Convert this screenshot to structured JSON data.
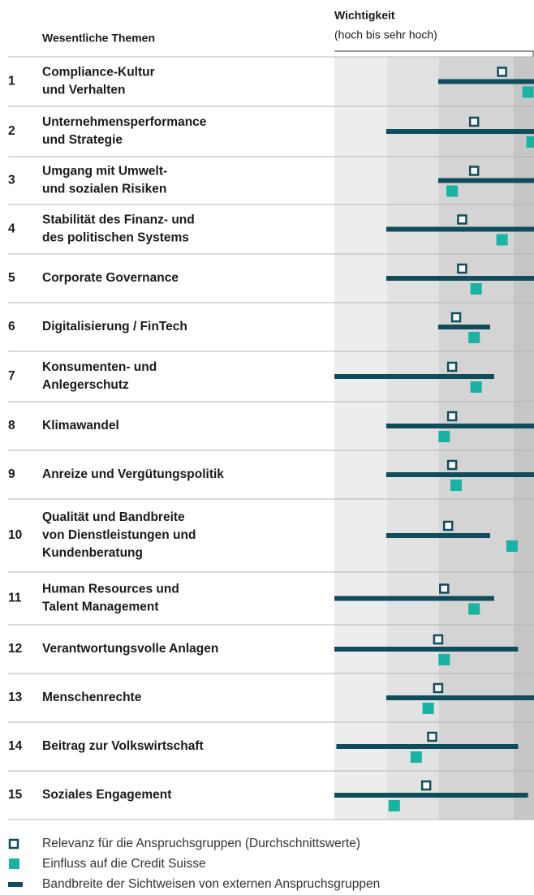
{
  "chart_data": {
    "type": "range",
    "row_header": "Wesentliche Themen",
    "axis_title": "Wichtigkeit",
    "axis_subtitle": "(hoch bis sehr hoch)",
    "numbers": [
      "1",
      "2",
      "3",
      "4",
      "5",
      "6",
      "7",
      "8",
      "9",
      "10",
      "11",
      "12",
      "13",
      "14",
      "15"
    ],
    "categories": [
      [
        "Compliance-Kultur",
        "und Verhalten"
      ],
      [
        "Unternehmensperformance",
        "und Strategie"
      ],
      [
        "Umgang mit Umwelt-",
        "und sozialen Risiken"
      ],
      [
        "Stabilität des Finanz- und",
        "des politischen Systems"
      ],
      [
        "Corporate Governance"
      ],
      [
        "Digitalisierung / FinTech"
      ],
      [
        "Konsumenten- und",
        "Anlegerschutz"
      ],
      [
        "Klimawandel"
      ],
      [
        "Anreize und Vergütungspolitik"
      ],
      [
        "Qualität und Bandbreite",
        "von Dienstleistungen und",
        "Kundenberatung"
      ],
      [
        "Human Resources und",
        "Talent Management"
      ],
      [
        "Verantwortungsvolle Anlagen"
      ],
      [
        "Menschenrechte"
      ],
      [
        "Beitrag zur Volkswirtschaft"
      ],
      [
        "Soziales Engagement"
      ]
    ],
    "xlim": [
      0,
      100
    ],
    "series": [
      {
        "name": "Relevanz für die Anspruchsgruppen (Durchschnittswerte)",
        "color": "#0f4c5c",
        "values": [
          84,
          70,
          70,
          64,
          64,
          61,
          59,
          59,
          59,
          57,
          55,
          52,
          52,
          49,
          46
        ]
      },
      {
        "name": "Einfluss auf die Credit Suisse",
        "color": "#17b3a3",
        "values": [
          97,
          99,
          59,
          84,
          71,
          70,
          71,
          55,
          61,
          89,
          70,
          55,
          47,
          41,
          30
        ]
      },
      {
        "name": "Bandbreite der Sichtweisen von externen Anspruchsgruppen",
        "color": "#0f4c5c",
        "low": [
          52,
          26,
          52,
          26,
          26,
          52,
          0,
          26,
          26,
          26,
          0,
          0,
          26,
          1,
          0
        ],
        "high": [
          100,
          100,
          100,
          100,
          100,
          78,
          80,
          100,
          100,
          78,
          80,
          92,
          100,
          92,
          97
        ]
      }
    ]
  }
}
